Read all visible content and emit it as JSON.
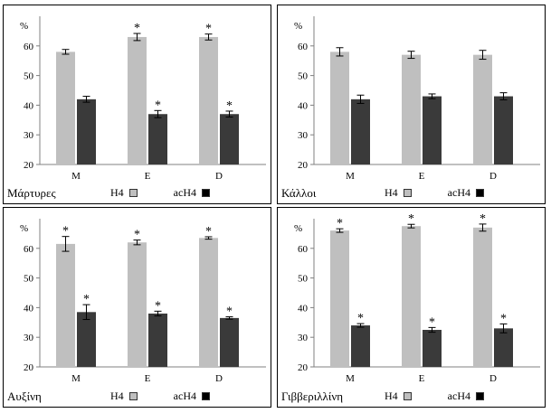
{
  "colors": {
    "H4": "#bfbfbf",
    "acH4": "#3a3a3a",
    "axis": "#808080",
    "panel_border": "#000000"
  },
  "legend": {
    "h4_label": "H4",
    "ach4_label": "acH4"
  },
  "chart_data": [
    {
      "type": "bar",
      "title": "Μάρτυρες",
      "unit_label": "%",
      "categories": [
        "M",
        "E",
        "D"
      ],
      "ylim": [
        20,
        70
      ],
      "yticks": [
        20,
        30,
        40,
        50,
        60
      ],
      "grid": false,
      "legend_position": "bottom-right",
      "series": [
        {
          "name": "H4",
          "values": [
            58,
            63,
            63
          ],
          "errors": [
            0.8,
            1.2,
            1.0
          ],
          "significant": [
            false,
            true,
            true
          ]
        },
        {
          "name": "acH4",
          "values": [
            42,
            37,
            37
          ],
          "errors": [
            1.0,
            1.2,
            1.0
          ],
          "significant": [
            false,
            true,
            true
          ]
        }
      ]
    },
    {
      "type": "bar",
      "title": "Κάλλοι",
      "unit_label": "%",
      "categories": [
        "M",
        "E",
        "D"
      ],
      "ylim": [
        20,
        70
      ],
      "yticks": [
        20,
        30,
        40,
        50,
        60
      ],
      "grid": false,
      "legend_position": "bottom-right",
      "series": [
        {
          "name": "H4",
          "values": [
            58,
            57,
            57
          ],
          "errors": [
            1.4,
            1.2,
            1.5
          ],
          "significant": [
            false,
            false,
            false
          ]
        },
        {
          "name": "acH4",
          "values": [
            42,
            43,
            43
          ],
          "errors": [
            1.4,
            0.8,
            1.2
          ],
          "significant": [
            false,
            false,
            false
          ]
        }
      ]
    },
    {
      "type": "bar",
      "title": "Αυξίνη",
      "unit_label": "%",
      "categories": [
        "M",
        "E",
        "D"
      ],
      "ylim": [
        20,
        70
      ],
      "yticks": [
        20,
        30,
        40,
        50,
        60
      ],
      "grid": false,
      "legend_position": "bottom-right",
      "series": [
        {
          "name": "H4",
          "values": [
            61.5,
            62,
            63.5
          ],
          "errors": [
            2.5,
            0.8,
            0.4
          ],
          "significant": [
            true,
            true,
            true
          ]
        },
        {
          "name": "acH4",
          "values": [
            38.5,
            38,
            36.5
          ],
          "errors": [
            2.5,
            0.8,
            0.4
          ],
          "significant": [
            true,
            true,
            true
          ]
        }
      ]
    },
    {
      "type": "bar",
      "title": "Γιββεριλλίνη",
      "unit_label": "%",
      "categories": [
        "M",
        "E",
        "D"
      ],
      "ylim": [
        20,
        70
      ],
      "yticks": [
        20,
        30,
        40,
        50,
        60
      ],
      "grid": false,
      "legend_position": "bottom-right",
      "series": [
        {
          "name": "H4",
          "values": [
            66,
            67.5,
            67
          ],
          "errors": [
            0.6,
            0.6,
            1.2
          ],
          "significant": [
            true,
            true,
            true
          ]
        },
        {
          "name": "acH4",
          "values": [
            34,
            32.5,
            33
          ],
          "errors": [
            0.6,
            0.8,
            1.5
          ],
          "significant": [
            true,
            true,
            true
          ]
        }
      ]
    }
  ]
}
